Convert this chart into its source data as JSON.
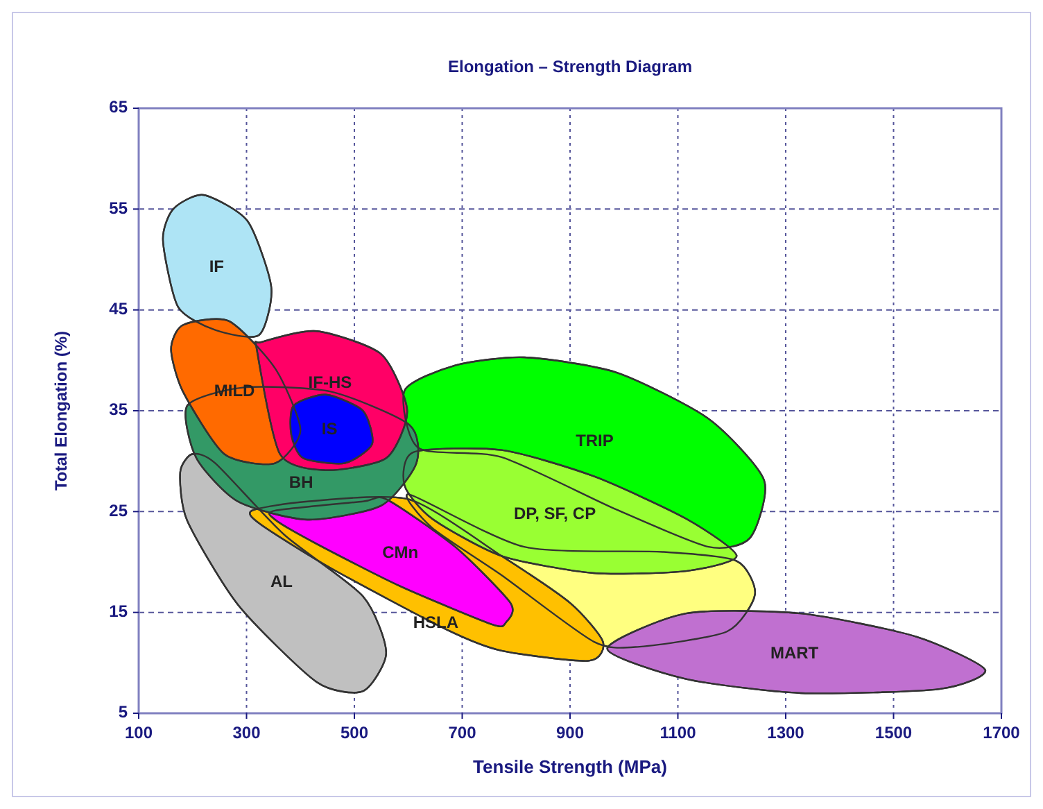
{
  "chart_data": {
    "type": "area",
    "title": "Elongation – Strength Diagram",
    "xlabel": "Tensile Strength (MPa)",
    "ylabel": "Total Elongation (%)",
    "xlim": [
      100,
      1700
    ],
    "xticks": [
      100,
      300,
      500,
      700,
      900,
      1100,
      1300,
      1500,
      1700
    ],
    "ylim": [
      5,
      65
    ],
    "yticks": [
      5,
      15,
      25,
      35,
      45,
      55,
      65
    ],
    "grid": true,
    "series": [
      {
        "name": "AL",
        "color": "#c0c0c0",
        "x": [
          199,
          242,
          370,
          516,
          559,
          516,
          430,
          285,
          190,
          177
        ],
        "values": [
          30.7,
          29.8,
          22.7,
          16.6,
          11.0,
          7.2,
          8.1,
          15.7,
          24.1,
          28.9
        ]
      },
      {
        "color": "#ffff80",
        "x": [
          602,
          815,
          1072,
          1209,
          1243,
          1191,
          1029,
          944,
          773,
          644
        ],
        "values": [
          26.7,
          21.5,
          21.0,
          20.1,
          16.8,
          13.1,
          11.6,
          12.1,
          18.7,
          23.4
        ]
      },
      {
        "name": "MART",
        "color": "#c070d0",
        "x": [
          969,
          1115,
          1328,
          1542,
          1670,
          1585,
          1328,
          1115
        ],
        "values": [
          11.4,
          14.9,
          14.9,
          12.6,
          9.3,
          7.4,
          7.0,
          8.4
        ]
      },
      {
        "name": "HSLA",
        "color": "#ffc000",
        "x": [
          310,
          413,
          602,
          773,
          901,
          961,
          935,
          773,
          671,
          456,
          327
        ],
        "values": [
          25.1,
          26.0,
          26.2,
          20.6,
          15.9,
          12.1,
          10.2,
          11.2,
          13.3,
          19.4,
          23.7
        ]
      },
      {
        "name": "CMn",
        "color": "#ff00ff",
        "x": [
          353,
          516,
          560,
          687,
          790,
          781,
          756,
          585,
          430,
          353
        ],
        "values": [
          25.1,
          26.0,
          26.2,
          21.5,
          15.9,
          14.0,
          13.8,
          17.6,
          21.8,
          24.2
        ]
      },
      {
        "name": "TRIP",
        "color": "#00ff00",
        "x": [
          593,
          687,
          815,
          986,
          1157,
          1260,
          1234,
          1157,
          986,
          773,
          619
        ],
        "values": [
          37.0,
          39.5,
          40.3,
          38.8,
          34.2,
          28.1,
          22.4,
          21.5,
          25.2,
          30.4,
          31.3
        ]
      },
      {
        "name": "DP, SF, CP",
        "color": "#99ff33",
        "x": [
          610,
          773,
          944,
          1115,
          1209,
          1115,
          944,
          773,
          644,
          593
        ],
        "values": [
          30.9,
          31.1,
          28.5,
          24.3,
          20.6,
          19.1,
          18.9,
          20.6,
          24.3,
          27.6
        ]
      },
      {
        "name": "BH",
        "color": "#339966",
        "x": [
          190,
          293,
          456,
          602,
          615,
          550,
          413,
          284,
          207
        ],
        "values": [
          35.5,
          37.3,
          36.9,
          33.6,
          29.8,
          25.6,
          24.2,
          26.0,
          30.3
        ]
      },
      {
        "name": "IF",
        "color": "#aee4f5",
        "x": [
          220,
          302,
          346,
          323,
          242,
          173,
          145,
          164
        ],
        "values": [
          56.4,
          53.8,
          47.2,
          42.5,
          43.0,
          45.3,
          51.9,
          55.0
        ]
      },
      {
        "name": "MILD",
        "color": "#ff6a00",
        "x": [
          182,
          267,
          353,
          400,
          353,
          259,
          182,
          160
        ],
        "values": [
          43.5,
          43.9,
          39.2,
          33.1,
          29.8,
          30.7,
          36.9,
          41.1
        ]
      },
      {
        "name": "IF-HS",
        "color": "#ff0066",
        "x": [
          327,
          430,
          550,
          598,
          559,
          447,
          362,
          319
        ],
        "values": [
          41.8,
          42.9,
          40.6,
          35.0,
          30.3,
          29.1,
          30.7,
          41.1
        ]
      },
      {
        "name": "IS",
        "color": "#0000ff",
        "x": [
          387,
          447,
          516,
          533,
          482,
          405,
          383
        ],
        "values": [
          35.5,
          36.6,
          35.0,
          31.7,
          29.8,
          30.3,
          32.6
        ]
      }
    ]
  }
}
